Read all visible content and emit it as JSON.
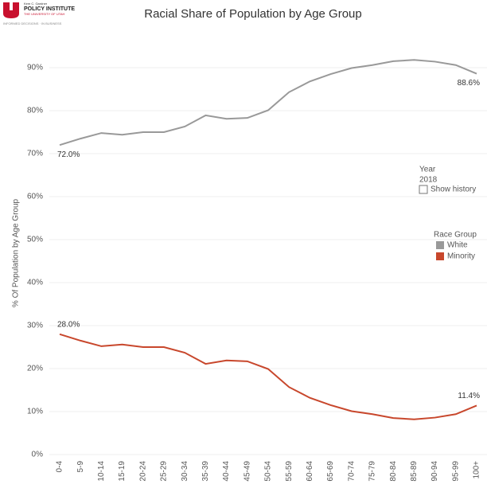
{
  "logo": {
    "line1": "Kem C. Gardner",
    "line2": "POLICY INSTITUTE",
    "line3": "THE UNIVERSITY OF UTAH",
    "tagline": "INFORMED DECISIONS · IN BUSINESS"
  },
  "filter": {
    "title": "Year",
    "value": "2018",
    "option": "Show history"
  },
  "chart_data": {
    "type": "line",
    "title": "Racial Share of Population by Age Group",
    "y_label": "% Of Population by Age Group",
    "categories": [
      "0-4",
      "5-9",
      "10-14",
      "15-19",
      "20-24",
      "25-29",
      "30-34",
      "35-39",
      "40-44",
      "45-49",
      "50-54",
      "55-59",
      "60-64",
      "65-69",
      "70-74",
      "75-79",
      "80-84",
      "85-89",
      "90-94",
      "95-99",
      "100+"
    ],
    "legend_title": "Race Group",
    "series": [
      {
        "name": "White",
        "color": "#999999",
        "values": [
          72.0,
          73.5,
          74.8,
          74.4,
          75.0,
          75.0,
          76.3,
          78.9,
          78.1,
          78.3,
          80.1,
          84.3,
          86.8,
          88.5,
          89.9,
          90.6,
          91.5,
          91.8,
          91.4,
          90.6,
          88.6
        ],
        "value_labels": [
          "72.0%",
          null,
          null,
          null,
          null,
          null,
          null,
          null,
          null,
          null,
          null,
          null,
          null,
          null,
          null,
          null,
          null,
          null,
          null,
          null,
          "88.6%"
        ]
      },
      {
        "name": "Minority",
        "color": "#c8472c",
        "values": [
          28.0,
          26.5,
          25.2,
          25.6,
          25.0,
          25.0,
          23.7,
          21.1,
          21.9,
          21.7,
          19.9,
          15.7,
          13.2,
          11.5,
          10.1,
          9.4,
          8.5,
          8.2,
          8.6,
          9.4,
          11.4
        ],
        "value_labels": [
          "28.0%",
          null,
          null,
          null,
          null,
          null,
          null,
          null,
          null,
          null,
          null,
          null,
          null,
          null,
          null,
          null,
          null,
          null,
          null,
          null,
          "11.4%"
        ]
      }
    ],
    "ylim": [
      0,
      95
    ],
    "yticks": [
      {
        "value": 0,
        "label": "0%"
      },
      {
        "value": 10,
        "label": "10%"
      },
      {
        "value": 20,
        "label": "20%"
      },
      {
        "value": 30,
        "label": "30%"
      },
      {
        "value": 40,
        "label": "40%"
      },
      {
        "value": 50,
        "label": "50%"
      },
      {
        "value": 60,
        "label": "60%"
      },
      {
        "value": 70,
        "label": "70%"
      },
      {
        "value": 80,
        "label": "80%"
      },
      {
        "value": 90,
        "label": "90%"
      }
    ],
    "grid": true
  }
}
